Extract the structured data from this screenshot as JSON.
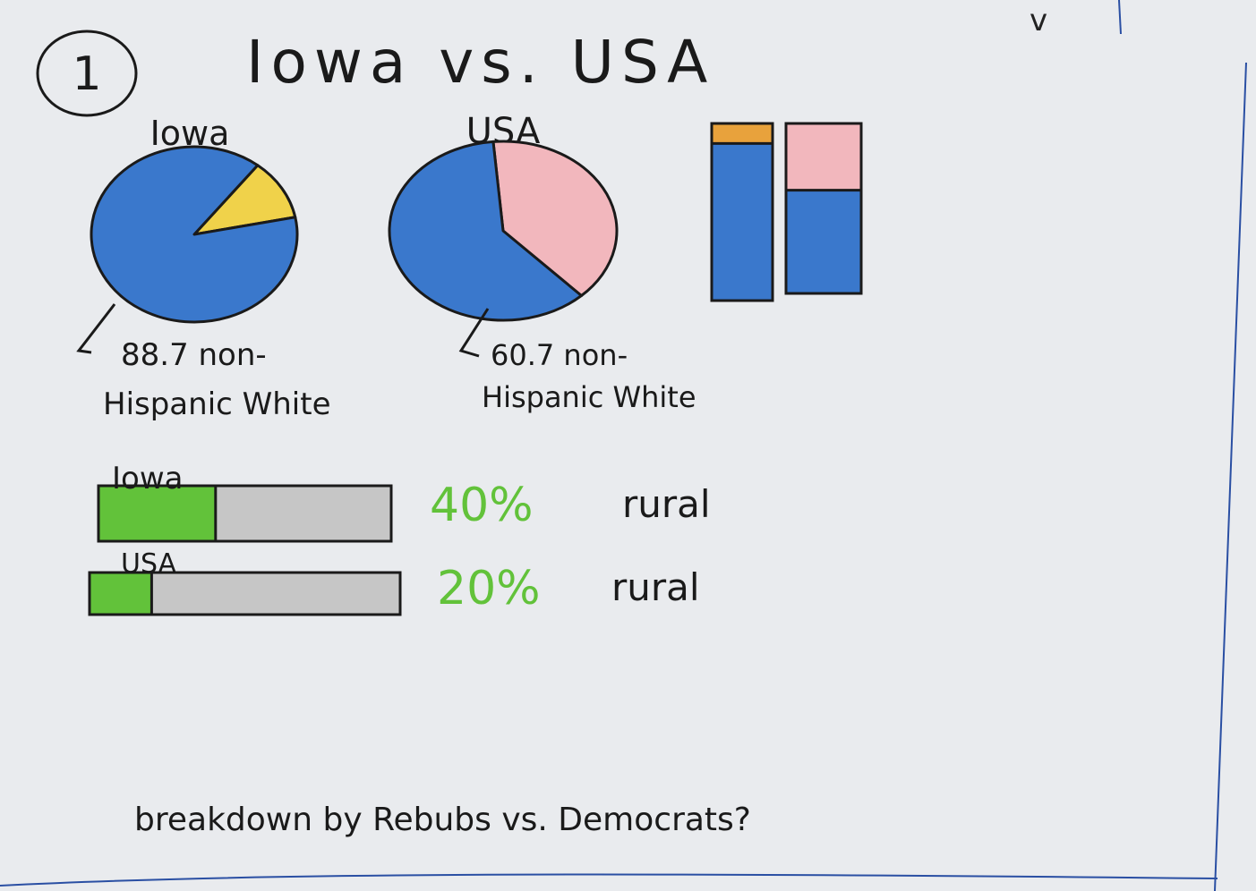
{
  "page": {
    "number_label": "1",
    "title": "Iowa vs. USA",
    "corner_mark": "v"
  },
  "colors": {
    "white_share": "#3a78cc",
    "nonwhite_iowa": "#f0d24a",
    "nonwhite_usa": "#f2b7bd",
    "bar_top_iowa": "#e8a23c",
    "rural": "#62c23a",
    "urban": "#c6c6c6",
    "ink": "#1a1a1a",
    "margin_line": "#2a4fa3",
    "paper": "#e9ebee"
  },
  "chart_data": [
    {
      "type": "pie",
      "title": "Iowa",
      "values": [
        88.7,
        11.3
      ],
      "annotation": "88.7 non-Hispanic White"
    },
    {
      "type": "pie",
      "title": "USA",
      "values": [
        60.7,
        39.3
      ],
      "annotation": "60.7 non-Hispanic White"
    },
    {
      "type": "bar",
      "stacked": true,
      "orientation": "vertical",
      "series": [
        {
          "values": [
            88.7,
            60.7
          ]
        },
        {
          "values": [
            11.3,
            39.3
          ]
        }
      ]
    },
    {
      "type": "bar",
      "stacked": true,
      "orientation": "horizontal",
      "categories": [
        "Iowa",
        "USA"
      ],
      "values": [
        40,
        20
      ],
      "value_labels": [
        "40%",
        "20%"
      ],
      "label_suffix": "rural"
    }
  ],
  "footer": {
    "note": "breakdown by Rebubs vs. Democrats?"
  }
}
